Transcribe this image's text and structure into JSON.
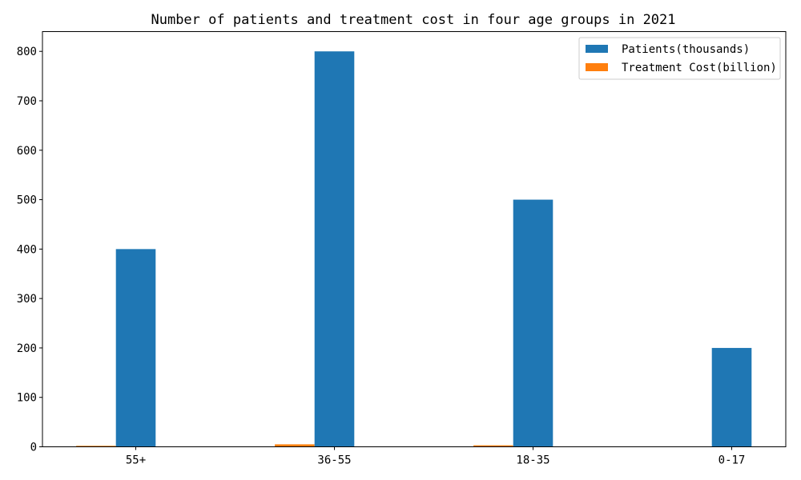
{
  "chart_data": {
    "type": "bar",
    "title": "Number of patients and treatment cost in four age groups in 2021",
    "xlabel": "",
    "ylabel": "",
    "categories": [
      "55+",
      "36-55",
      "18-35",
      "0-17"
    ],
    "series": [
      {
        "name": "Patients(thousands)",
        "color": "#1f77b4",
        "values": [
          400,
          800,
          500,
          200
        ]
      },
      {
        "name": "Treatment Cost(billion)",
        "color": "#ff7f0e",
        "values": [
          2,
          5,
          3,
          0
        ]
      }
    ],
    "ylim": [
      0,
      840
    ],
    "yticks": [
      0,
      100,
      200,
      300,
      400,
      500,
      600,
      700,
      800
    ],
    "grid": false,
    "legend_position": "top-right"
  }
}
